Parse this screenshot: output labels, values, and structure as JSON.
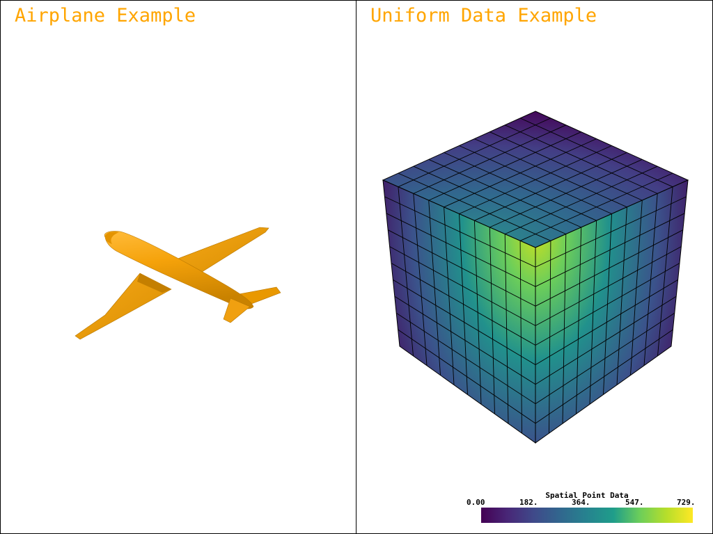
{
  "viewports": {
    "left": {
      "title": "Airplane Example",
      "mesh_color": "#ffa500",
      "icon": "airplane-mesh"
    },
    "right": {
      "title": "Uniform Data Example",
      "mesh": "uniform-grid-cube",
      "grid_divisions": 10,
      "edge_color": "#000000"
    }
  },
  "colorbar": {
    "title": "Spatial Point Data",
    "ticks": [
      "0.00",
      "182.",
      "364.",
      "547.",
      "729."
    ],
    "colormap": "viridis",
    "range": [
      0,
      729
    ]
  },
  "title_color": "#ffa500"
}
